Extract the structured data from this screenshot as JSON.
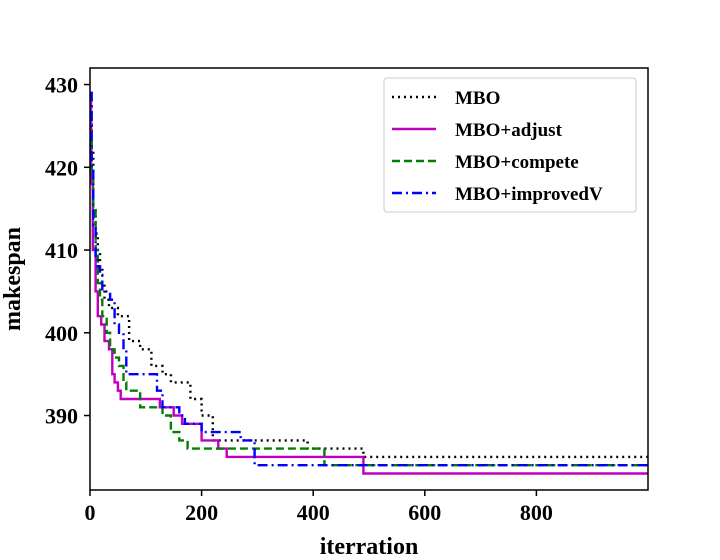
{
  "chart_data": {
    "type": "line",
    "title": "",
    "xlabel": "iterration",
    "ylabel": "makespan",
    "xlim": [
      0,
      1000
    ],
    "ylim": [
      381,
      432
    ],
    "xticks": [
      0,
      200,
      400,
      600,
      800
    ],
    "yticks": [
      390,
      400,
      410,
      420,
      430
    ],
    "grid": false,
    "legend_position": "top-right",
    "series": [
      {
        "name": "MBO",
        "style": "dotted",
        "color": "#000000",
        "points": [
          [
            0,
            428
          ],
          [
            3,
            422
          ],
          [
            6,
            415
          ],
          [
            10,
            412
          ],
          [
            14,
            410
          ],
          [
            18,
            408
          ],
          [
            22,
            406
          ],
          [
            26,
            404
          ],
          [
            34,
            403
          ],
          [
            50,
            402
          ],
          [
            70,
            399
          ],
          [
            90,
            398
          ],
          [
            110,
            396
          ],
          [
            130,
            395
          ],
          [
            145,
            394
          ],
          [
            180,
            392
          ],
          [
            200,
            390
          ],
          [
            220,
            387
          ],
          [
            390,
            386
          ],
          [
            490,
            385
          ],
          [
            1000,
            385
          ]
        ]
      },
      {
        "name": "MBO+adjust",
        "style": "solid",
        "color": "#bf00bf",
        "points": [
          [
            0,
            428
          ],
          [
            2,
            418
          ],
          [
            5,
            410
          ],
          [
            10,
            405
          ],
          [
            14,
            402
          ],
          [
            20,
            401
          ],
          [
            26,
            399
          ],
          [
            34,
            398
          ],
          [
            40,
            395
          ],
          [
            44,
            394
          ],
          [
            50,
            393
          ],
          [
            55,
            392
          ],
          [
            125,
            391
          ],
          [
            150,
            390
          ],
          [
            165,
            389
          ],
          [
            200,
            387
          ],
          [
            230,
            386
          ],
          [
            245,
            385
          ],
          [
            490,
            383
          ],
          [
            1000,
            383
          ]
        ]
      },
      {
        "name": "MBO+compete",
        "style": "dashed",
        "color": "#008000",
        "points": [
          [
            0,
            423
          ],
          [
            3,
            419
          ],
          [
            6,
            415
          ],
          [
            10,
            410
          ],
          [
            14,
            406
          ],
          [
            18,
            404
          ],
          [
            22,
            402
          ],
          [
            30,
            400
          ],
          [
            36,
            398
          ],
          [
            44,
            397
          ],
          [
            52,
            396
          ],
          [
            60,
            394
          ],
          [
            65,
            393
          ],
          [
            90,
            391
          ],
          [
            130,
            390
          ],
          [
            145,
            388
          ],
          [
            160,
            387
          ],
          [
            175,
            386
          ],
          [
            420,
            384
          ],
          [
            1000,
            384
          ]
        ]
      },
      {
        "name": "MBO+improvedV",
        "style": "dashdot",
        "color": "#0000ff",
        "points": [
          [
            0,
            429
          ],
          [
            3,
            420
          ],
          [
            6,
            413
          ],
          [
            10,
            409
          ],
          [
            14,
            408
          ],
          [
            18,
            407
          ],
          [
            22,
            405
          ],
          [
            36,
            404
          ],
          [
            44,
            401
          ],
          [
            52,
            400
          ],
          [
            60,
            398
          ],
          [
            65,
            395
          ],
          [
            120,
            393
          ],
          [
            130,
            391
          ],
          [
            160,
            390
          ],
          [
            170,
            389
          ],
          [
            200,
            388
          ],
          [
            270,
            387
          ],
          [
            295,
            384
          ],
          [
            1000,
            384
          ]
        ]
      }
    ]
  }
}
